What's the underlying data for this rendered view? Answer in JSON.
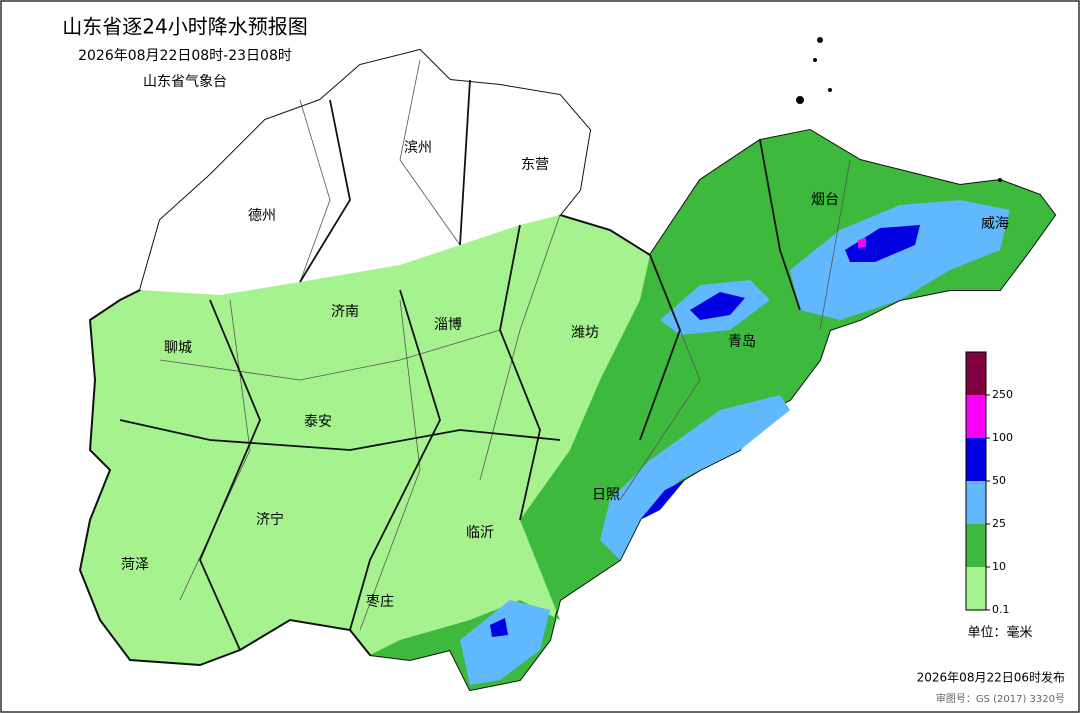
{
  "header": {
    "title": "山东省逐24小时降水预报图",
    "period": "2026年08月22日08时-23日08时",
    "issuer": "山东省气象台"
  },
  "cities": [
    "滨州",
    "东营",
    "德州",
    "烟台",
    "威海",
    "济南",
    "淄博",
    "潍坊",
    "聊城",
    "青岛",
    "泰安",
    "日照",
    "济宁",
    "临沂",
    "菏泽",
    "枣庄"
  ],
  "legend": {
    "bands": [
      {
        "value": 0.1,
        "color": "#a6f28f"
      },
      {
        "value": 10,
        "color": "#3dba3d"
      },
      {
        "value": 25,
        "color": "#61b8ff"
      },
      {
        "value": 50,
        "color": "#0000e1"
      },
      {
        "value": 100,
        "color": "#fa00fa"
      },
      {
        "value": 250,
        "color": "#800040"
      }
    ],
    "unit": "单位：毫米"
  },
  "footer": {
    "issued": "2026年08月22日06时发布",
    "review": "审图号：GS (2017) 3320号"
  }
}
